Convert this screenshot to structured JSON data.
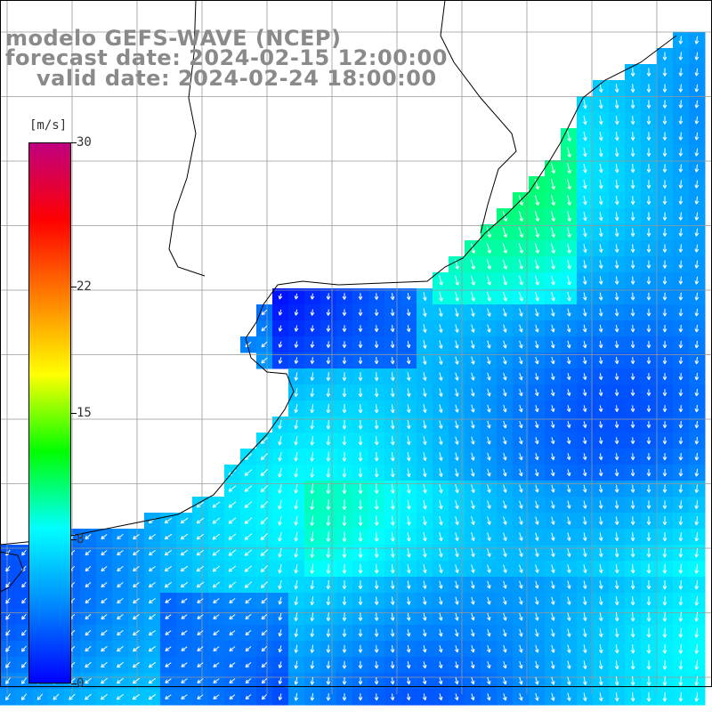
{
  "header": {
    "line1": "modelo GEFS-WAVE (NCEP)",
    "line2": "forecast date: 2024-02-15 12:00:00",
    "line3": "valid date: 2024-02-24 18:00:00"
  },
  "colorbar": {
    "unit": "[m/s]",
    "ticks": [
      {
        "label": "30",
        "value": 30
      },
      {
        "label": "22",
        "value": 22
      },
      {
        "label": "15",
        "value": 15
      },
      {
        "label": "8",
        "value": 8
      },
      {
        "label": "0",
        "value": 0
      }
    ],
    "min": 0,
    "max": 30,
    "stops": [
      "#0000ff",
      "#0088ff",
      "#00ffff",
      "#00ff00",
      "#ffff00",
      "#ff8000",
      "#ff0000",
      "#c00080"
    ]
  },
  "map": {
    "field": "wind speed",
    "land_color": "#ffffff",
    "grid_color": "#999999",
    "arrow_color": "#ffffff",
    "coast_color": "#000000"
  }
}
